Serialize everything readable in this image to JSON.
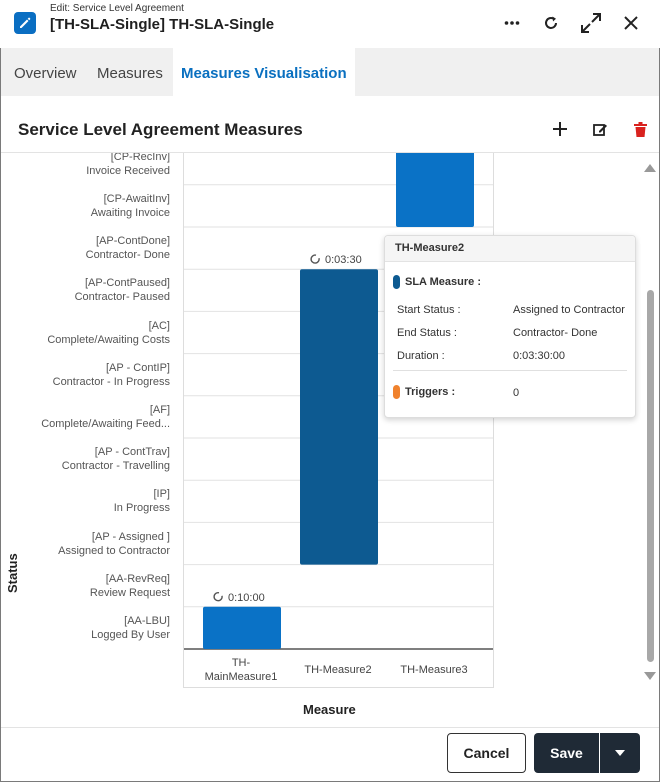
{
  "window": {
    "subtitle": "Edit: Service Level Agreement",
    "title": "[TH-SLA-Single] TH-SLA-Single"
  },
  "tabs": [
    {
      "label": "Overview"
    },
    {
      "label": "Measures"
    },
    {
      "label": "Measures Visualisation"
    }
  ],
  "section": {
    "title": "Service Level Agreement Measures"
  },
  "colors": {
    "accent": "#0a70c0",
    "bar_light": "#0a72c6",
    "bar_dark": "#0d5a91",
    "delete": "#d9221e",
    "triggers": "#f0822d"
  },
  "chart_data": {
    "type": "bar",
    "subtype": "floating-range",
    "xlabel": "Measure",
    "ylabel": "Status",
    "categories": [
      "TH-MainMeasure1",
      "TH-Measure2",
      "TH-Measure3"
    ],
    "category_lines": [
      [
        "TH-",
        "MainMeasure1"
      ],
      [
        "TH-Measure2"
      ],
      [
        "TH-Measure3"
      ]
    ],
    "status_levels": [
      {
        "code": "[AA-LBU]",
        "name": "Logged By User"
      },
      {
        "code": "[AA-RevReq]",
        "name": "Review Request"
      },
      {
        "code": "[AP - Assigned ]",
        "name": "Assigned to Contractor"
      },
      {
        "code": "[IP]",
        "name": "In Progress"
      },
      {
        "code": "[AP - ContTrav]",
        "name": "Contractor - Travelling"
      },
      {
        "code": "[AF]",
        "name": "Complete/Awaiting Feed..."
      },
      {
        "code": "[AP - ContIP]",
        "name": "Contractor - In Progress"
      },
      {
        "code": "[AC]",
        "name": "Complete/Awaiting Costs"
      },
      {
        "code": "[AP-ContPaused]",
        "name": "Contractor- Paused"
      },
      {
        "code": "[AP-ContDone]",
        "name": "Contractor- Done"
      },
      {
        "code": "[CP-AwaitInv]",
        "name": "Awaiting Invoice"
      },
      {
        "code": "[CP-RecInv]",
        "name": "Invoice Received"
      }
    ],
    "bars": [
      {
        "category": "TH-MainMeasure1",
        "from_level": 0,
        "to_level": 1,
        "duration_label": "0:10:00",
        "color": "#0a72c6"
      },
      {
        "category": "TH-Measure2",
        "from_level": 2,
        "to_level": 9,
        "duration_label": "0:03:30",
        "color": "#0d5a91"
      },
      {
        "category": "TH-Measure3",
        "from_level": 10,
        "to_level": 12,
        "duration_label": "",
        "color": "#0a72c6"
      }
    ],
    "grid": true
  },
  "tooltip": {
    "title": "TH-Measure2",
    "sla_label": "SLA Measure :",
    "rows": [
      {
        "key": "Start Status :",
        "value": "Assigned to Contractor"
      },
      {
        "key": "End Status :",
        "value": "Contractor- Done"
      },
      {
        "key": "Duration :",
        "value": "0:03:30:00"
      }
    ],
    "triggers_label": "Triggers :",
    "triggers_value": "0"
  },
  "footer": {
    "cancel_label": "Cancel",
    "save_label": "Save"
  }
}
